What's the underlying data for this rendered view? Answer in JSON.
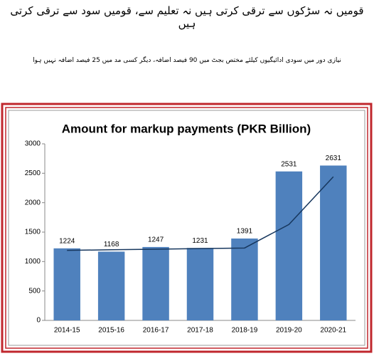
{
  "headline": "قومیں نہ سڑکوں سے ترقی کرتی ہیں نہ تعلیم سے، قومیں سود سے ترقی کرتی ہیں",
  "subheadline": "نیازی دور میں سودی ادائیگیوں کیلئے مختص بجٹ میں 90 فیصد اضافہ، دیگر کسی مد میں 25 فیصد اضافہ نہیں ہوا",
  "chart_data": {
    "type": "bar",
    "title": "Amount for markup payments (PKR Billion)",
    "categories": [
      "2014-15",
      "2015-16",
      "2016-17",
      "2017-18",
      "2018-19",
      "2019-20",
      "2020-21"
    ],
    "series": [
      {
        "type": "bar",
        "color": "#4f81bd",
        "values": [
          1224,
          1168,
          1247,
          1231,
          1391,
          2531,
          2631
        ]
      },
      {
        "type": "line",
        "color": "#17375e",
        "values": [
          1190,
          1200,
          1210,
          1220,
          1230,
          1630,
          2440
        ]
      }
    ],
    "ylim": [
      0,
      3000
    ],
    "yticks": [
      0,
      500,
      1000,
      1500,
      2000,
      2500,
      3000
    ],
    "grid": false
  }
}
